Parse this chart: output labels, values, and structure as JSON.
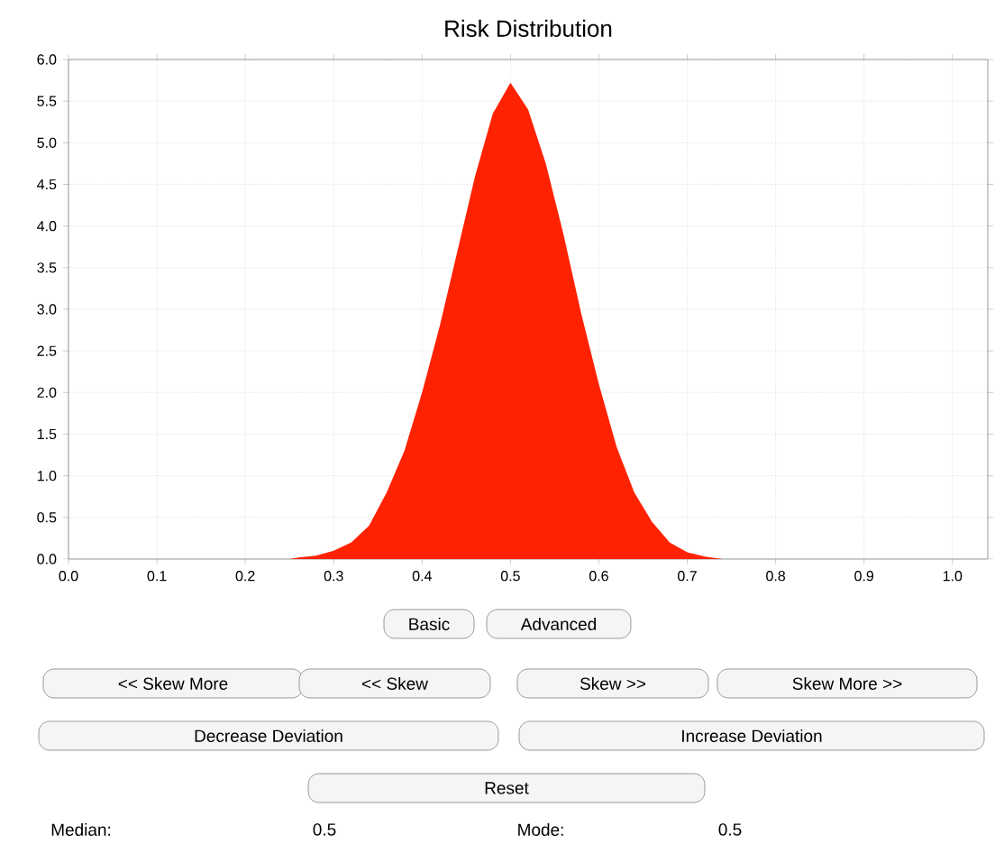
{
  "chart_data": {
    "type": "area",
    "title": "Risk Distribution",
    "x": [
      0.25,
      0.26,
      0.28,
      0.3,
      0.32,
      0.34,
      0.36,
      0.38,
      0.4,
      0.42,
      0.44,
      0.46,
      0.48,
      0.5,
      0.52,
      0.54,
      0.56,
      0.58,
      0.6,
      0.62,
      0.64,
      0.66,
      0.68,
      0.7,
      0.72,
      0.74
    ],
    "values": [
      0,
      0.02,
      0.04,
      0.1,
      0.2,
      0.4,
      0.8,
      1.3,
      2.0,
      2.8,
      3.7,
      4.6,
      5.35,
      5.72,
      5.4,
      4.75,
      3.9,
      2.95,
      2.1,
      1.35,
      0.8,
      0.45,
      0.2,
      0.08,
      0.03,
      0
    ],
    "color": "#ff2200",
    "xlim": [
      0,
      1.04
    ],
    "ylim": [
      0,
      6
    ],
    "xticks": [
      {
        "value": 0,
        "label": "0.0"
      },
      0.1,
      0.2,
      0.3,
      0.4,
      0.5,
      0.6,
      0.7,
      0.8,
      0.9,
      {
        "value": 1,
        "label": "1.0"
      }
    ],
    "yticks": [
      {
        "value": 0,
        "label": "0.0"
      },
      0.5,
      {
        "value": 1,
        "label": "1.0"
      },
      1.5,
      {
        "value": 2,
        "label": "2.0"
      },
      2.5,
      {
        "value": 3,
        "label": "3.0"
      },
      3.5,
      {
        "value": 4,
        "label": "4.0"
      },
      4.5,
      {
        "value": 5,
        "label": "5.0"
      },
      5.5,
      {
        "value": 6,
        "label": "6.0"
      }
    ],
    "grid": true,
    "marker": "none",
    "annotations": [
      "Basic",
      "Advanced",
      "<< Skew More",
      "<< Skew",
      "Skew >>",
      "Skew More >>",
      "Decrease Deviation",
      "Increase Deviation",
      "Reset",
      "Median:",
      "0.5",
      "Mode:",
      "0.5"
    ]
  }
}
